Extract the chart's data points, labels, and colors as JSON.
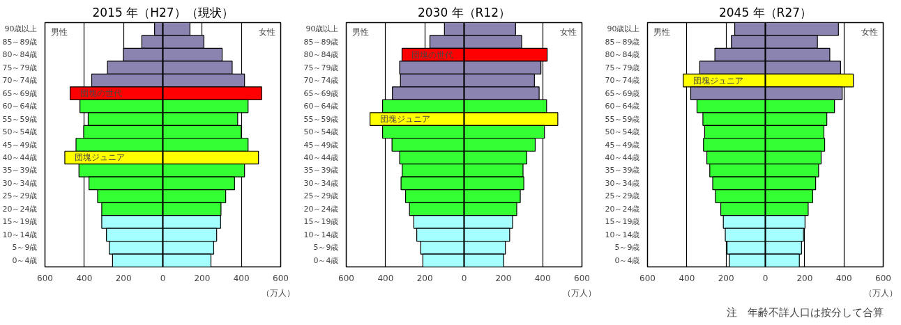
{
  "chart_data": [
    {
      "type": "bar",
      "orientation": "horizontal",
      "title": "2015 年（H27）（現状）",
      "xlabel": "（万人）",
      "categories": [
        "90歳以上",
        "85～89歳",
        "80～84歳",
        "75～79歳",
        "70～74歳",
        "65～69歳",
        "60～64歳",
        "55～59歳",
        "50～54歳",
        "45～49歳",
        "40～44歳",
        "35～39歳",
        "30～34歳",
        "25～29歳",
        "20～24歳",
        "15～19歳",
        "10～14歳",
        "5～9歳",
        "0～4歳"
      ],
      "series": [
        {
          "values": [
            -42,
            -107,
            -201,
            -282,
            -362,
            -472,
            -422,
            -380,
            -403,
            -442,
            -499,
            -427,
            -376,
            -332,
            -311,
            -311,
            -287,
            -273,
            -256
          ],
          "colors": [
            "#8b84b0",
            "#8b84b0",
            "#8b84b0",
            "#8b84b0",
            "#8b84b0",
            "#ff0000",
            "#33ff33",
            "#33ff33",
            "#33ff33",
            "#33ff33",
            "#ffff00",
            "#33ff33",
            "#33ff33",
            "#33ff33",
            "#33ff33",
            "#a6ffff",
            "#a6ffff",
            "#a6ffff",
            "#a6ffff"
          ]
        },
        {
          "values": [
            138,
            209,
            302,
            353,
            416,
            503,
            434,
            381,
            399,
            434,
            487,
            416,
            365,
            320,
            296,
            294,
            274,
            259,
            245
          ],
          "colors": [
            "#8b84b0",
            "#8b84b0",
            "#8b84b0",
            "#8b84b0",
            "#8b84b0",
            "#ff0000",
            "#33ff33",
            "#33ff33",
            "#33ff33",
            "#33ff33",
            "#ffff00",
            "#33ff33",
            "#33ff33",
            "#33ff33",
            "#33ff33",
            "#a6ffff",
            "#a6ffff",
            "#a6ffff",
            "#a6ffff"
          ]
        }
      ],
      "xlim": [
        -600,
        600
      ],
      "xticks": [
        {
          "value": -600,
          "label": "600"
        },
        {
          "value": -400,
          "label": "400"
        },
        {
          "value": -200,
          "label": "200"
        },
        0,
        200,
        400,
        600
      ],
      "grid": "x",
      "stacked": true,
      "annotations": [
        "男性",
        "女性",
        {
          "text": "団塊の世代",
          "x": -472,
          "y": "65～69歳"
        },
        {
          "text": "団塊ジュニア",
          "x": -499,
          "y": "40～44歳"
        }
      ]
    },
    {
      "type": "bar",
      "orientation": "horizontal",
      "title": "2030 年（R12）",
      "xlabel": "（万人）",
      "categories": [
        "90歳以上",
        "85～89歳",
        "80～84歳",
        "75～79歳",
        "70～74歳",
        "65～69歳",
        "60～64歳",
        "55～59歳",
        "50～54歳",
        "45～49歳",
        "40～44歳",
        "35～39歳",
        "30～34歳",
        "25～29歳",
        "20～24歳",
        "15～19歳",
        "10～14歳",
        "5～9歳",
        "0～4歳"
      ],
      "series": [
        {
          "values": [
            -100,
            -174,
            -316,
            -328,
            -324,
            -365,
            -415,
            -479,
            -415,
            -367,
            -328,
            -315,
            -321,
            -298,
            -278,
            -256,
            -241,
            -221,
            -210
          ],
          "colors": [
            "#8b84b0",
            "#8b84b0",
            "#ff0000",
            "#8b84b0",
            "#8b84b0",
            "#8b84b0",
            "#33ff33",
            "#ffff00",
            "#33ff33",
            "#33ff33",
            "#33ff33",
            "#33ff33",
            "#33ff33",
            "#33ff33",
            "#33ff33",
            "#a6ffff",
            "#a6ffff",
            "#a6ffff",
            "#a6ffff"
          ]
        },
        {
          "values": [
            262,
            293,
            423,
            391,
            358,
            382,
            420,
            477,
            409,
            362,
            319,
            300,
            304,
            286,
            268,
            247,
            232,
            210,
            202
          ],
          "colors": [
            "#8b84b0",
            "#8b84b0",
            "#ff0000",
            "#8b84b0",
            "#8b84b0",
            "#8b84b0",
            "#33ff33",
            "#ffff00",
            "#33ff33",
            "#33ff33",
            "#33ff33",
            "#33ff33",
            "#33ff33",
            "#33ff33",
            "#33ff33",
            "#a6ffff",
            "#a6ffff",
            "#a6ffff",
            "#a6ffff"
          ]
        }
      ],
      "xlim": [
        -600,
        600
      ],
      "xticks": [
        {
          "value": -600,
          "label": "600"
        },
        {
          "value": -400,
          "label": "400"
        },
        {
          "value": -200,
          "label": "200"
        },
        0,
        200,
        400,
        600
      ],
      "grid": "x",
      "stacked": true,
      "annotations": [
        "男性",
        "女性",
        {
          "text": "団塊の世代",
          "x": -316,
          "y": "80～84歳"
        },
        {
          "text": "団塊ジュニア",
          "x": -479,
          "y": "55～59歳"
        }
      ]
    },
    {
      "type": "bar",
      "orientation": "horizontal",
      "title": "2045 年（R27）",
      "xlabel": "（万人）",
      "categories": [
        "90歳以上",
        "85～89歳",
        "80～84歳",
        "75～79歳",
        "70～74歳",
        "65～69歳",
        "60～64歳",
        "55～59歳",
        "50～54歳",
        "45～49歳",
        "40～44歳",
        "35～39歳",
        "30～34歳",
        "25～29歳",
        "20～24歳",
        "15～19歳",
        "10～14歳",
        "5～9歳",
        "0～4歳"
      ],
      "series": [
        {
          "values": [
            -156,
            -173,
            -257,
            -334,
            -418,
            -380,
            -348,
            -318,
            -309,
            -315,
            -298,
            -283,
            -268,
            -254,
            -227,
            -214,
            -204,
            -195,
            -183
          ],
          "colors": [
            "#8b84b0",
            "#8b84b0",
            "#8b84b0",
            "#8b84b0",
            "#ffff00",
            "#8b84b0",
            "#33ff33",
            "#33ff33",
            "#33ff33",
            "#33ff33",
            "#33ff33",
            "#33ff33",
            "#33ff33",
            "#33ff33",
            "#33ff33",
            "#a6ffff",
            "#a6ffff",
            "#a6ffff",
            "#a6ffff"
          ]
        },
        {
          "values": [
            372,
            265,
            328,
            383,
            448,
            391,
            352,
            313,
            298,
            302,
            284,
            271,
            256,
            241,
            218,
            202,
            194,
            184,
            173
          ],
          "colors": [
            "#8b84b0",
            "#8b84b0",
            "#8b84b0",
            "#8b84b0",
            "#ffff00",
            "#8b84b0",
            "#33ff33",
            "#33ff33",
            "#33ff33",
            "#33ff33",
            "#33ff33",
            "#33ff33",
            "#33ff33",
            "#33ff33",
            "#33ff33",
            "#a6ffff",
            "#a6ffff",
            "#a6ffff",
            "#a6ffff"
          ]
        }
      ],
      "xlim": [
        -600,
        600
      ],
      "xticks": [
        {
          "value": -600,
          "label": "600"
        },
        {
          "value": -400,
          "label": "400"
        },
        {
          "value": -200,
          "label": "200"
        },
        0,
        200,
        400,
        600
      ],
      "grid": "x",
      "stacked": true,
      "annotations": [
        "男性",
        "女性",
        {
          "text": "団塊ジュニア",
          "x": -418,
          "y": "70～74歳"
        },
        "注　年齢不詳人口は按分して合算"
      ]
    }
  ]
}
